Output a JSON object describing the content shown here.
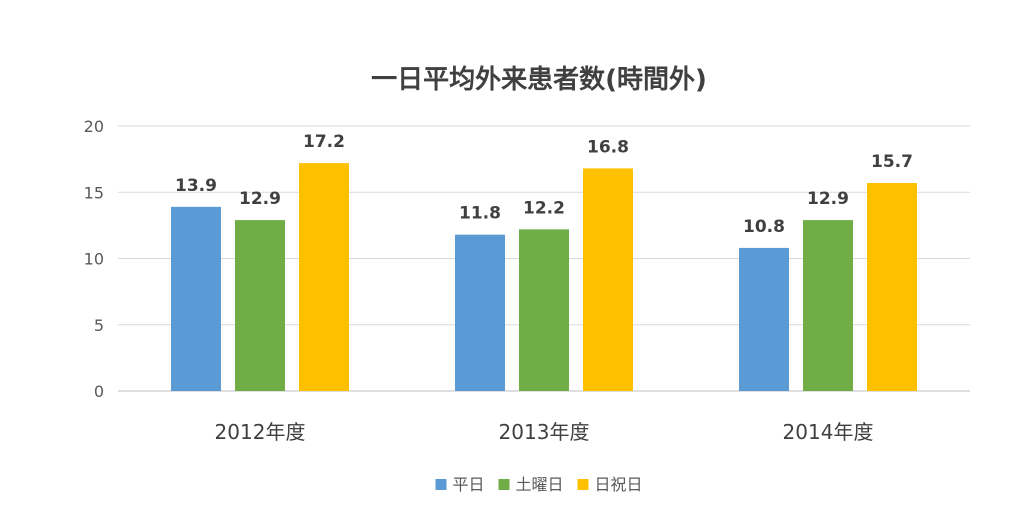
{
  "chart_data": {
    "type": "bar",
    "title": "一日平均外来患者数(時間外)",
    "categories": [
      "2012年度",
      "2013年度",
      "2014年度"
    ],
    "series": [
      {
        "name": "平日",
        "values": [
          13.9,
          11.8,
          10.8
        ],
        "color": "#5b9bd5"
      },
      {
        "name": "土曜日",
        "values": [
          12.9,
          12.2,
          12.9
        ],
        "color": "#70ad47"
      },
      {
        "name": "日祝日",
        "values": [
          17.2,
          16.8,
          15.7
        ],
        "color": "#ffc000"
      }
    ],
    "ylim": [
      0,
      20
    ],
    "yticks": [
      0,
      5,
      10,
      15,
      20
    ],
    "grid": true,
    "legend_position": "bottom",
    "data_labels": true
  }
}
